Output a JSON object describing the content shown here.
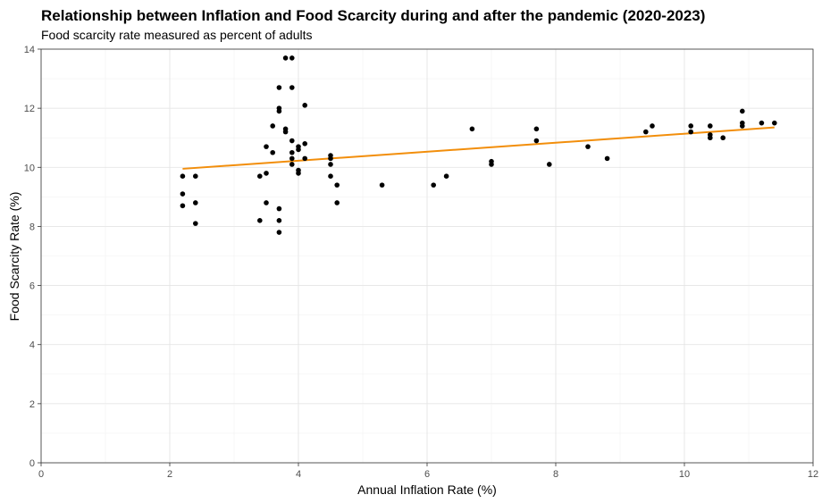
{
  "chart_data": {
    "type": "scatter",
    "title": "Relationship between Inflation and Food Scarcity during and after the pandemic (2020-2023)",
    "subtitle": "Food scarcity rate measured as percent of adults",
    "xlabel": "Annual Inflation Rate (%)",
    "ylabel": "Food Scarcity Rate (%)",
    "xlim": [
      0,
      12
    ],
    "ylim": [
      0,
      14
    ],
    "x_ticks": [
      0,
      2,
      4,
      6,
      8,
      10,
      12
    ],
    "y_ticks": [
      0,
      2,
      4,
      6,
      8,
      10,
      12,
      14
    ],
    "x_tick_labels": [
      "0",
      "2",
      "4",
      "6",
      "8",
      "10",
      "12"
    ],
    "y_tick_labels": [
      "0",
      "2",
      "4",
      "6",
      "8",
      "10",
      "12",
      "14"
    ],
    "grid": true,
    "legend": "none",
    "colors": {
      "points": "#000000",
      "trend": "#f28e0b"
    },
    "points": [
      {
        "x": 2.2,
        "y": 9.7
      },
      {
        "x": 2.2,
        "y": 9.1
      },
      {
        "x": 2.2,
        "y": 8.7
      },
      {
        "x": 2.4,
        "y": 9.7
      },
      {
        "x": 2.4,
        "y": 8.8
      },
      {
        "x": 2.4,
        "y": 8.1
      },
      {
        "x": 3.4,
        "y": 9.7
      },
      {
        "x": 3.4,
        "y": 8.2
      },
      {
        "x": 3.5,
        "y": 10.7
      },
      {
        "x": 3.5,
        "y": 9.8
      },
      {
        "x": 3.5,
        "y": 8.8
      },
      {
        "x": 3.6,
        "y": 11.4
      },
      {
        "x": 3.6,
        "y": 10.5
      },
      {
        "x": 3.7,
        "y": 12.7
      },
      {
        "x": 3.7,
        "y": 12.0
      },
      {
        "x": 3.7,
        "y": 11.9
      },
      {
        "x": 3.7,
        "y": 8.6
      },
      {
        "x": 3.7,
        "y": 8.2
      },
      {
        "x": 3.7,
        "y": 7.8
      },
      {
        "x": 3.8,
        "y": 13.7
      },
      {
        "x": 3.8,
        "y": 11.3
      },
      {
        "x": 3.8,
        "y": 11.2
      },
      {
        "x": 3.9,
        "y": 13.7
      },
      {
        "x": 3.9,
        "y": 12.7
      },
      {
        "x": 3.9,
        "y": 10.9
      },
      {
        "x": 3.9,
        "y": 10.5
      },
      {
        "x": 3.9,
        "y": 10.3
      },
      {
        "x": 3.9,
        "y": 10.1
      },
      {
        "x": 4.0,
        "y": 10.7
      },
      {
        "x": 4.0,
        "y": 10.6
      },
      {
        "x": 4.0,
        "y": 9.9
      },
      {
        "x": 4.0,
        "y": 9.8
      },
      {
        "x": 4.1,
        "y": 12.1
      },
      {
        "x": 4.1,
        "y": 10.8
      },
      {
        "x": 4.1,
        "y": 10.3
      },
      {
        "x": 4.5,
        "y": 10.4
      },
      {
        "x": 4.5,
        "y": 10.3
      },
      {
        "x": 4.5,
        "y": 10.1
      },
      {
        "x": 4.5,
        "y": 9.7
      },
      {
        "x": 4.6,
        "y": 9.4
      },
      {
        "x": 4.6,
        "y": 8.8
      },
      {
        "x": 5.3,
        "y": 9.4
      },
      {
        "x": 6.1,
        "y": 9.4
      },
      {
        "x": 6.3,
        "y": 9.7
      },
      {
        "x": 6.7,
        "y": 11.3
      },
      {
        "x": 7.0,
        "y": 10.2
      },
      {
        "x": 7.0,
        "y": 10.1
      },
      {
        "x": 7.7,
        "y": 11.3
      },
      {
        "x": 7.7,
        "y": 10.9
      },
      {
        "x": 7.9,
        "y": 10.1
      },
      {
        "x": 8.5,
        "y": 10.7
      },
      {
        "x": 8.8,
        "y": 10.3
      },
      {
        "x": 9.4,
        "y": 11.2
      },
      {
        "x": 9.5,
        "y": 11.4
      },
      {
        "x": 10.1,
        "y": 11.4
      },
      {
        "x": 10.1,
        "y": 11.2
      },
      {
        "x": 10.4,
        "y": 11.4
      },
      {
        "x": 10.4,
        "y": 11.1
      },
      {
        "x": 10.4,
        "y": 11.0
      },
      {
        "x": 10.6,
        "y": 11.0
      },
      {
        "x": 10.9,
        "y": 11.9
      },
      {
        "x": 10.9,
        "y": 11.5
      },
      {
        "x": 10.9,
        "y": 11.4
      },
      {
        "x": 11.2,
        "y": 11.5
      },
      {
        "x": 11.4,
        "y": 11.5
      }
    ],
    "trend_line": {
      "x": [
        2.2,
        11.4
      ],
      "y": [
        9.95,
        11.35
      ]
    }
  }
}
